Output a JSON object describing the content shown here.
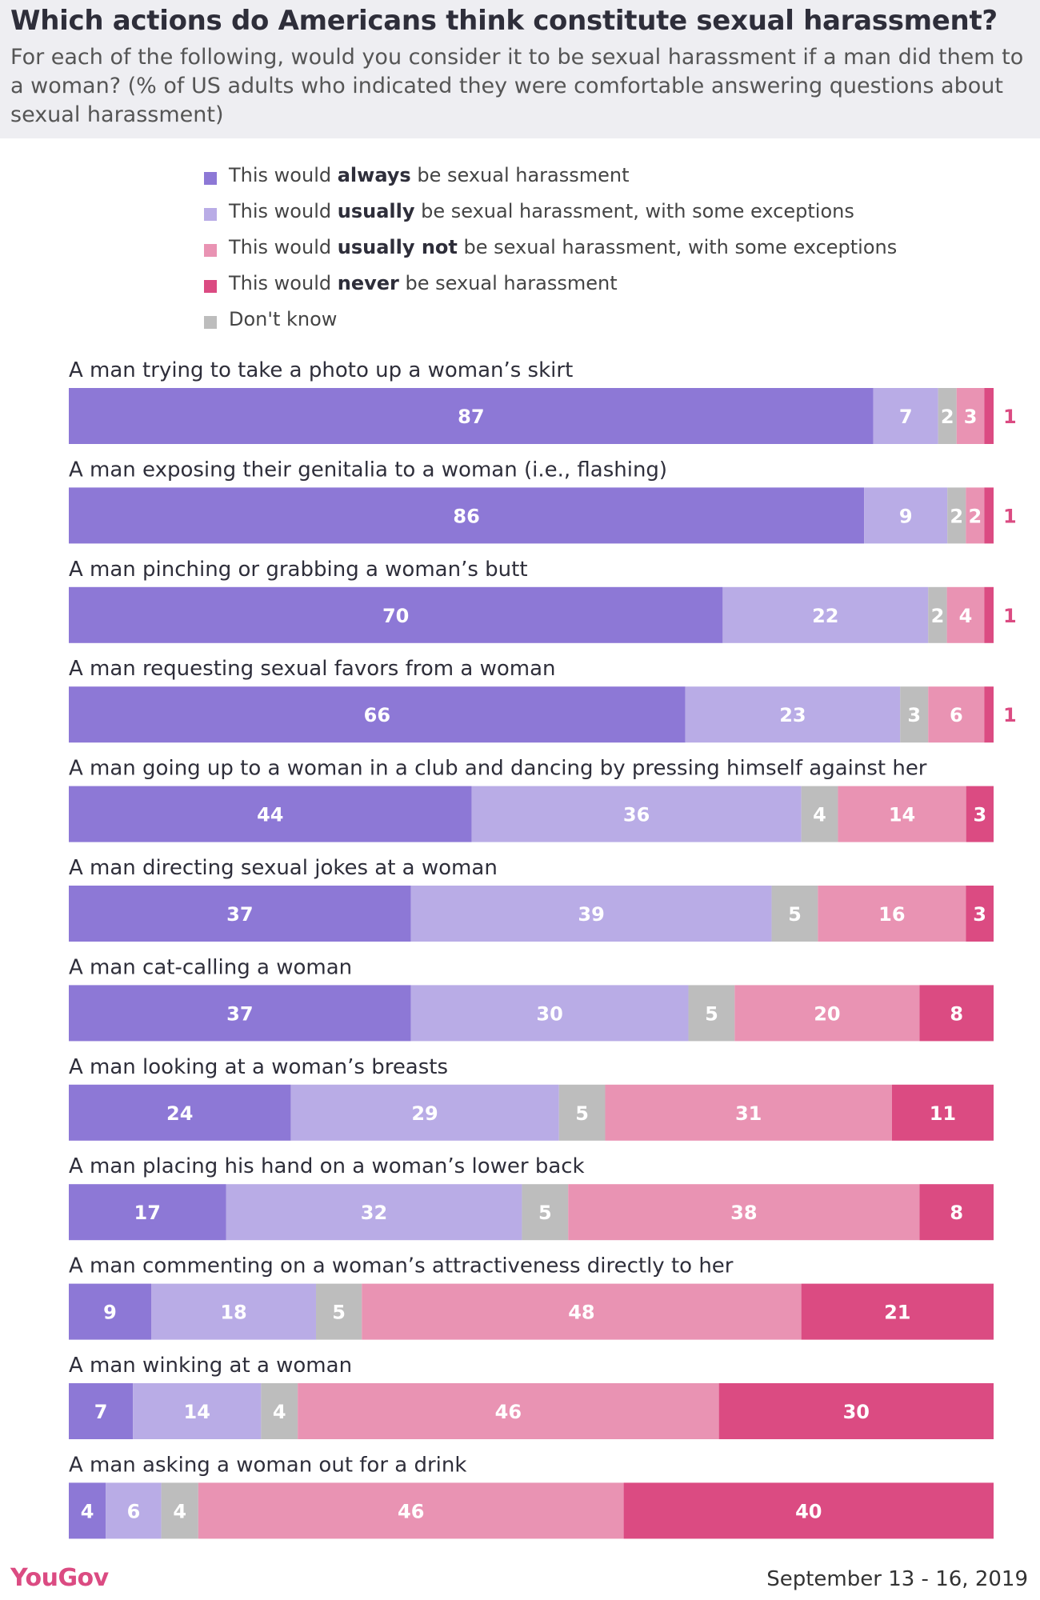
{
  "header": {
    "title": "Which actions do Americans think constitute sexual harassment?",
    "subtitle": "For each of the following, would you consider it to be sexual harassment if a man did them to a woman? (% of US adults who indicated they were comfortable answering questions about sexual harassment)"
  },
  "legend": [
    {
      "pre": "This would ",
      "bold": "always",
      "post": " be sexual harassment",
      "color": "#8d78d6"
    },
    {
      "pre": "This would ",
      "bold": "usually",
      "post": " be sexual harassment, with some exceptions",
      "color": "#b9ace6"
    },
    {
      "pre": "This would ",
      "bold": "usually not",
      "post": " be sexual harassment, with some exceptions",
      "color": "#e993b3"
    },
    {
      "pre": "This would ",
      "bold": "never",
      "post": " be sexual harassment",
      "color": "#db4b82"
    },
    {
      "pre": "Don't know",
      "bold": "",
      "post": "",
      "color": "#bdbdbd"
    }
  ],
  "chart_data": {
    "type": "bar",
    "orientation": "horizontal",
    "stacked": true,
    "unit": "%",
    "categories": [
      "A man trying to take a photo up a woman’s skirt",
      "A man exposing their genitalia to a woman (i.e., flashing)",
      "A man pinching or grabbing a woman’s butt",
      "A man requesting sexual favors from a woman",
      "A man going up to a woman in a club and dancing by pressing himself against her",
      "A man directing sexual jokes at a woman",
      "A man cat-calling a woman",
      "A man looking at a woman’s breasts",
      "A man placing his hand on a woman’s lower back",
      "A man commenting on a woman’s attractiveness directly to her",
      "A man winking at a woman",
      "A man asking a woman out for a drink"
    ],
    "series": [
      {
        "name": "This would always be sexual harassment",
        "color": "#8d78d6",
        "values": [
          87,
          86,
          70,
          66,
          44,
          37,
          37,
          24,
          17,
          9,
          7,
          4
        ]
      },
      {
        "name": "This would usually be sexual harassment, with some exceptions",
        "color": "#b9ace6",
        "values": [
          7,
          9,
          22,
          23,
          36,
          39,
          30,
          29,
          32,
          18,
          14,
          6
        ]
      },
      {
        "name": "Don't know",
        "color": "#bdbdbd",
        "values": [
          2,
          2,
          2,
          3,
          4,
          5,
          5,
          5,
          5,
          5,
          4,
          4
        ]
      },
      {
        "name": "This would usually not be sexual harassment, with some exceptions",
        "color": "#e993b3",
        "values": [
          3,
          2,
          4,
          6,
          14,
          16,
          20,
          31,
          38,
          48,
          46,
          46
        ]
      },
      {
        "name": "This would never be sexual harassment",
        "color": "#db4b82",
        "values": [
          1,
          1,
          1,
          1,
          3,
          3,
          8,
          11,
          8,
          21,
          30,
          40
        ]
      }
    ]
  },
  "footer": {
    "source": "YouGov",
    "date": "September 13 - 16, 2019"
  }
}
